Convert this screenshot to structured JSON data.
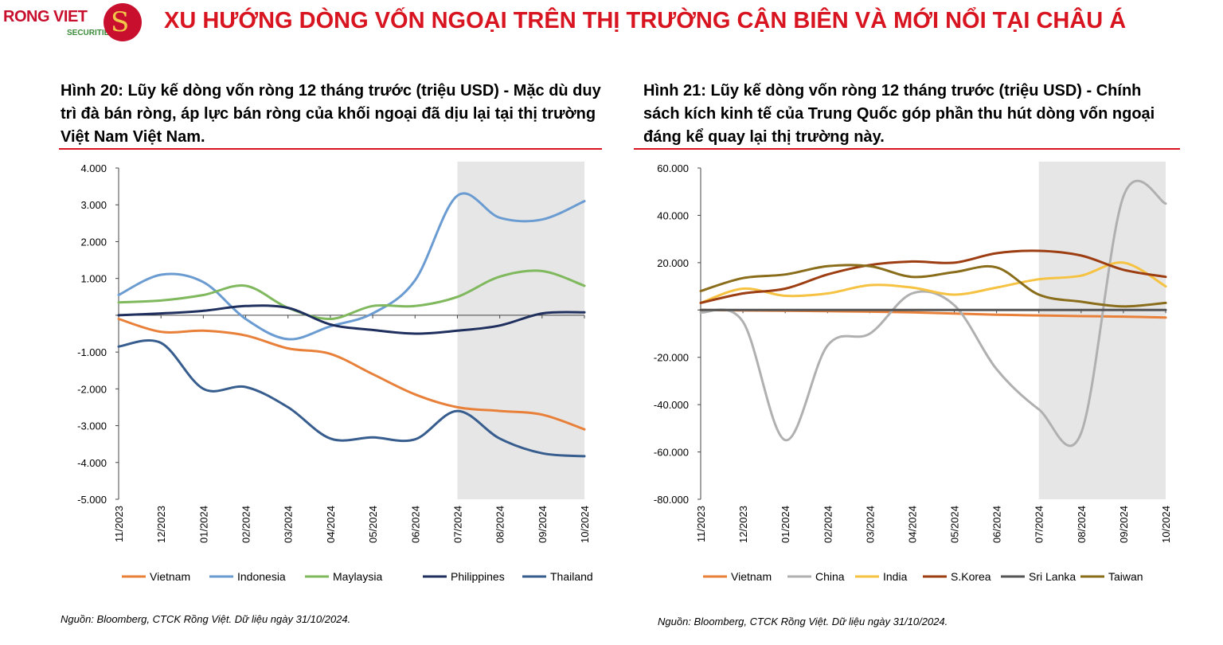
{
  "logo": {
    "name": "RONG VIET",
    "sub": "SECURITIES"
  },
  "page_title": "XU HƯỚNG DÒNG VỐN NGOẠI TRÊN THỊ TRƯỜNG CẬN BIÊN VÀ MỚI NỔI TẠI CHÂU Á",
  "chart_data": [
    {
      "type": "line",
      "title": "Hình 20: Lũy kế dòng vốn ròng 12 tháng trước (triệu USD) -  Mặc dù duy trì đà bán ròng, áp lực bán ròng của khối ngoại đã dịu lại tại thị trường Việt Nam Việt Nam.",
      "categories": [
        "11/2023",
        "12/2023",
        "01/2024",
        "02/2024",
        "03/2024",
        "04/2024",
        "05/2024",
        "06/2024",
        "07/2024",
        "08/2024",
        "09/2024",
        "10/2024"
      ],
      "ylim": [
        -5000,
        4000
      ],
      "yticks": [
        4000,
        3000,
        2000,
        1000,
        0,
        -1000,
        -2000,
        -3000,
        -4000,
        -5000
      ],
      "ytick_labels": [
        "4.000",
        "3.000",
        "2.000",
        "1.000",
        "",
        "-1.000",
        "-2.000",
        "-3.000",
        "-4.000",
        "-5.000"
      ],
      "shaded_from_index": 8,
      "series": [
        {
          "name": "Vietnam",
          "color": "#e8803a",
          "values": [
            -100,
            -450,
            -420,
            -550,
            -900,
            -1050,
            -1600,
            -2150,
            -2500,
            -2600,
            -2700,
            -3100
          ]
        },
        {
          "name": "Indonesia",
          "color": "#6a9bd1",
          "values": [
            550,
            1100,
            900,
            -100,
            -650,
            -300,
            50,
            950,
            3250,
            2650,
            2600,
            3100
          ]
        },
        {
          "name": "Maylaysia",
          "color": "#7fb85d",
          "values": [
            350,
            400,
            550,
            800,
            200,
            -100,
            250,
            250,
            500,
            1050,
            1200,
            800
          ]
        },
        {
          "name": "Philippines",
          "color": "#1f2f5e",
          "values": [
            0,
            50,
            120,
            250,
            200,
            -250,
            -400,
            -500,
            -420,
            -280,
            50,
            80
          ]
        },
        {
          "name": "Thailand",
          "color": "#375d8e",
          "values": [
            -850,
            -750,
            -2000,
            -1950,
            -2500,
            -3350,
            -3320,
            -3370,
            -2600,
            -3350,
            -3750,
            -3830
          ]
        }
      ],
      "source": "Nguồn: Bloomberg, CTCK Rồng Việt. Dữ liệu ngày 31/10/2024."
    },
    {
      "type": "line",
      "title": "Hình 21: Lũy kế dòng vốn ròng 12 tháng trước (triệu USD) - Chính sách kích kinh tế của Trung Quốc góp phần thu hút dòng vốn ngoại đáng kể quay lại thị trường này.",
      "categories": [
        "11/2023",
        "12/2023",
        "01/2024",
        "02/2024",
        "03/2024",
        "04/2024",
        "05/2024",
        "06/2024",
        "07/2024",
        "08/2024",
        "09/2024",
        "10/2024"
      ],
      "ylim": [
        -80000,
        60000
      ],
      "yticks": [
        60000,
        40000,
        20000,
        0,
        -20000,
        -40000,
        -60000,
        -80000
      ],
      "ytick_labels": [
        "60.000",
        "40.000",
        "20.000",
        "",
        "-20.000",
        "-40.000",
        "-60.000",
        "-80.000"
      ],
      "shaded_from_index": 8,
      "series": [
        {
          "name": "Vietnam",
          "color": "#e8803a",
          "values": [
            0,
            -200,
            -300,
            -500,
            -700,
            -1000,
            -1500,
            -2000,
            -2300,
            -2600,
            -2800,
            -3200
          ]
        },
        {
          "name": "China",
          "color": "#b0b0b0",
          "values": [
            -1000,
            -5000,
            -55000,
            -15000,
            -10000,
            7000,
            2000,
            -25000,
            -42000,
            -52000,
            48000,
            45000
          ]
        },
        {
          "name": "India",
          "color": "#f5c242",
          "values": [
            3000,
            9000,
            6000,
            7000,
            10500,
            9500,
            6500,
            9500,
            13000,
            14500,
            20000,
            10000
          ]
        },
        {
          "name": "S.Korea",
          "color": "#9c3d12",
          "values": [
            3000,
            7000,
            9000,
            15000,
            19000,
            20500,
            20000,
            24000,
            25000,
            23000,
            17000,
            14000
          ]
        },
        {
          "name": "Sri Lanka",
          "color": "#555555",
          "values": [
            0,
            0,
            0,
            0,
            0,
            0,
            0,
            0,
            0,
            0,
            0,
            0
          ]
        },
        {
          "name": "Taiwan",
          "color": "#8a6d1a",
          "values": [
            8000,
            13500,
            15000,
            18500,
            18500,
            14000,
            16000,
            18000,
            6500,
            3500,
            1500,
            3000
          ]
        }
      ],
      "source": "Nguồn: Bloomberg, CTCK Rồng Việt. Dữ liệu ngày 31/10/2024."
    }
  ]
}
